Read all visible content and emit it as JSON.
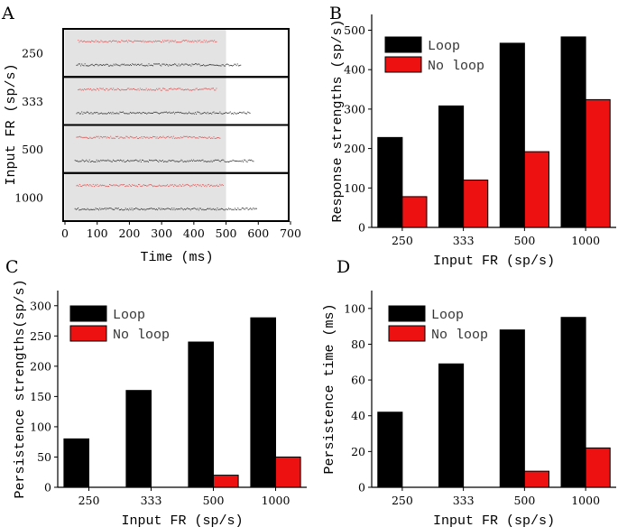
{
  "colors": {
    "loop": "#000000",
    "no_loop": "#ee1111",
    "shade": "#e3e3e3",
    "axis": "#000000",
    "raster_red": "#dd5555",
    "raster_black": "#333333"
  },
  "chart_data": [
    {
      "id": "A",
      "panel_label": "A",
      "type": "scatter",
      "subtype": "raster",
      "xlabel": "Time (ms)",
      "ylabel": "Input FR (sp/s)",
      "xlim": [
        0,
        700
      ],
      "xticks": [
        0,
        100,
        200,
        300,
        400,
        500,
        600,
        700
      ],
      "stimulus_window_ms": [
        0,
        500
      ],
      "rows": [
        "250",
        "333",
        "500",
        "1000"
      ],
      "traces": [
        {
          "row": "250",
          "series": "no_loop",
          "start_ms": 40,
          "end_ms": 470
        },
        {
          "row": "250",
          "series": "loop",
          "start_ms": 35,
          "end_ms": 545
        },
        {
          "row": "333",
          "series": "no_loop",
          "start_ms": 40,
          "end_ms": 470
        },
        {
          "row": "333",
          "series": "loop",
          "start_ms": 35,
          "end_ms": 575
        },
        {
          "row": "500",
          "series": "no_loop",
          "start_ms": 35,
          "end_ms": 480
        },
        {
          "row": "500",
          "series": "loop",
          "start_ms": 30,
          "end_ms": 585
        },
        {
          "row": "1000",
          "series": "no_loop",
          "start_ms": 35,
          "end_ms": 490
        },
        {
          "row": "1000",
          "series": "loop",
          "start_ms": 30,
          "end_ms": 595
        }
      ]
    },
    {
      "id": "B",
      "panel_label": "B",
      "type": "bar",
      "xlabel": "Input FR (sp/s)",
      "ylabel": "Response strengths (sp/s)",
      "categories": [
        "250",
        "333",
        "500",
        "1000"
      ],
      "ylim": [
        0,
        540
      ],
      "yticks": [
        0,
        100,
        200,
        300,
        400,
        500
      ],
      "legend": [
        "Loop",
        "No loop"
      ],
      "series": [
        {
          "name": "Loop",
          "key": "loop",
          "values": [
            228,
            308,
            467,
            483
          ]
        },
        {
          "name": "No loop",
          "key": "no_loop",
          "values": [
            78,
            120,
            192,
            324
          ]
        }
      ]
    },
    {
      "id": "C",
      "panel_label": "C",
      "type": "bar",
      "xlabel": "Input FR (sp/s)",
      "ylabel": "Persistence strengths(sp/s)",
      "categories": [
        "250",
        "333",
        "500",
        "1000"
      ],
      "ylim": [
        0,
        325
      ],
      "yticks": [
        0,
        50,
        100,
        150,
        200,
        250,
        300
      ],
      "legend": [
        "Loop",
        "No loop"
      ],
      "series": [
        {
          "name": "Loop",
          "key": "loop",
          "values": [
            80,
            160,
            240,
            280
          ]
        },
        {
          "name": "No loop",
          "key": "no_loop",
          "values": [
            0,
            0,
            20,
            50
          ]
        }
      ]
    },
    {
      "id": "D",
      "panel_label": "D",
      "type": "bar",
      "xlabel": "Input FR (sp/s)",
      "ylabel": "Persistence time (ms)",
      "categories": [
        "250",
        "333",
        "500",
        "1000"
      ],
      "ylim": [
        0,
        110
      ],
      "yticks": [
        0,
        20,
        40,
        60,
        80,
        100
      ],
      "legend": [
        "Loop",
        "No loop"
      ],
      "series": [
        {
          "name": "Loop",
          "key": "loop",
          "values": [
            42,
            69,
            88,
            95
          ]
        },
        {
          "name": "No loop",
          "key": "no_loop",
          "values": [
            0,
            0,
            9,
            22
          ]
        }
      ]
    }
  ]
}
